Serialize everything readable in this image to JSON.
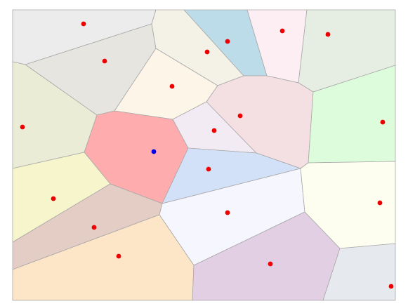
{
  "diagram": {
    "type": "voronoi",
    "highlighted_site_color": "#0000ee",
    "site_color": "#ee0000",
    "border_color": "#a8a8a8",
    "highlighted_cell": "cell-center-red",
    "cells": [
      {
        "id": "cell-top-left",
        "fill": "#ececec",
        "highlighted": false
      },
      {
        "id": "cell-upper-left-gray",
        "fill": "#e6e5df",
        "highlighted": false
      },
      {
        "id": "cell-top-cream",
        "fill": "#f4f1e6",
        "highlighted": false
      },
      {
        "id": "cell-top-blue",
        "fill": "#bcdcea",
        "highlighted": false
      },
      {
        "id": "cell-top-pink",
        "fill": "#fdeef4",
        "highlighted": false
      },
      {
        "id": "cell-top-right-green",
        "fill": "#e6ede3",
        "highlighted": false
      },
      {
        "id": "cell-peach",
        "fill": "#fdf5e7",
        "highlighted": false
      },
      {
        "id": "cell-left-olive",
        "fill": "#eaecd5",
        "highlighted": false
      },
      {
        "id": "cell-center-red",
        "fill": "#feacad",
        "highlighted": true
      },
      {
        "id": "cell-lavender",
        "fill": "#f2ebf4",
        "highlighted": false
      },
      {
        "id": "cell-rose",
        "fill": "#f4e0e2",
        "highlighted": false
      },
      {
        "id": "cell-right-green",
        "fill": "#dcfcdb",
        "highlighted": false
      },
      {
        "id": "cell-light-blue",
        "fill": "#d3e1f8",
        "highlighted": false
      },
      {
        "id": "cell-left-yellow",
        "fill": "#f6f5cb",
        "highlighted": false
      },
      {
        "id": "cell-mauve",
        "fill": "#e4cdc5",
        "highlighted": false
      },
      {
        "id": "cell-white-lavender",
        "fill": "#f6f6fe",
        "highlighted": false
      },
      {
        "id": "cell-right-cream",
        "fill": "#fefef0",
        "highlighted": false
      },
      {
        "id": "cell-bottom-orange",
        "fill": "#fde6c7",
        "highlighted": false
      },
      {
        "id": "cell-purple",
        "fill": "#e3cfe4",
        "highlighted": false
      },
      {
        "id": "cell-bottom-right",
        "fill": "#e6eaef",
        "highlighted": false
      }
    ]
  }
}
